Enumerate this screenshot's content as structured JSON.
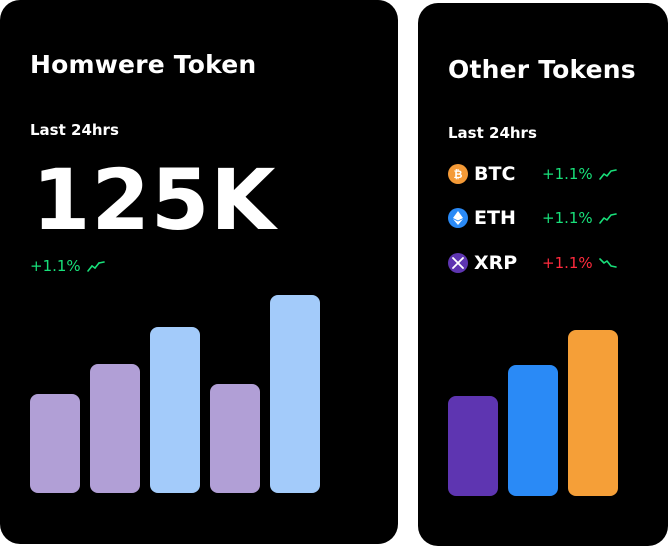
{
  "left_card": {
    "title": "Homwere Token",
    "period": "Last 24hrs",
    "value": "125K",
    "change": "+1.1%",
    "trend_icon": "trend-up-icon",
    "change_color": "#18e07a",
    "bars": [
      {
        "level": 0.5,
        "color": "#b19fd6"
      },
      {
        "level": 0.65,
        "color": "#b19fd6"
      },
      {
        "level": 0.84,
        "color": "#a3cbfa"
      },
      {
        "level": 0.55,
        "color": "#b19fd6"
      },
      {
        "level": 1.0,
        "color": "#a3cbfa"
      }
    ]
  },
  "right_card": {
    "title": "Other Tokens",
    "period": "Last 24hrs",
    "tokens": [
      {
        "symbol": "BTC",
        "change": "+1.1%",
        "icon": "bitcoin-icon",
        "icon_color": "#f49a37",
        "change_color": "#18e07a",
        "trend_icon": "trend-up-icon"
      },
      {
        "symbol": "ETH",
        "change": "+1.1%",
        "icon": "ethereum-icon",
        "icon_color": "#2a8af6",
        "change_color": "#18e07a",
        "trend_icon": "trend-up-icon"
      },
      {
        "symbol": "XRP",
        "change": "+1.1%",
        "icon": "xrp-icon",
        "icon_color": "#5e35b1",
        "change_color": "#ff2a3d",
        "trend_icon": "trend-down-icon"
      }
    ],
    "bars": [
      {
        "level": 0.6,
        "color": "#5e35b1"
      },
      {
        "level": 0.79,
        "color": "#2a8af6"
      },
      {
        "level": 1.0,
        "color": "#f59f38"
      }
    ]
  }
}
